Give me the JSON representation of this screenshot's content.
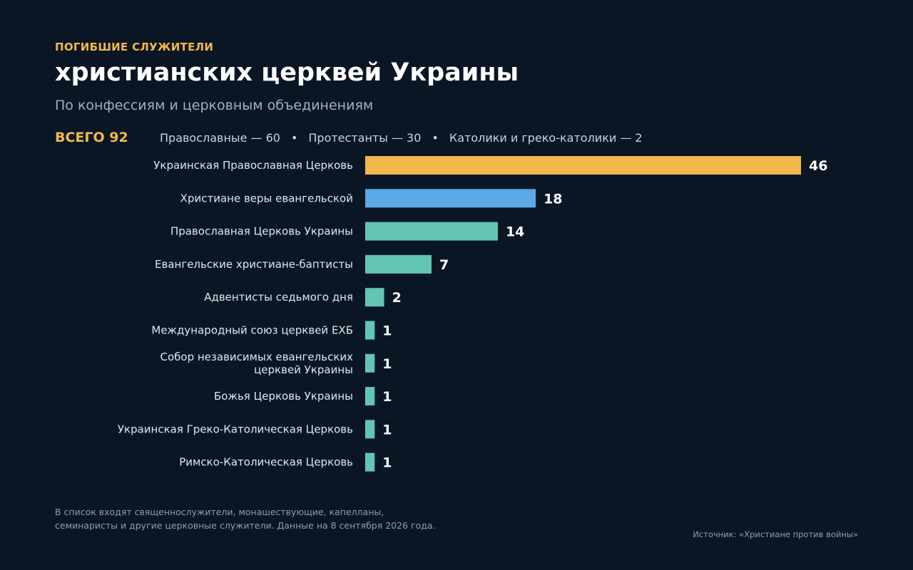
{
  "kicker": "ПОГИБШИЕ СЛУЖИТЕЛИ",
  "title": "христианских церквей Украины",
  "subtitle": "По конфессиям и церковным объединениям",
  "totals": {
    "main": "ВСЕГО 92",
    "orthodox": "Православные — 60",
    "protestant": "Протестанты — 30",
    "catholic": "Католики и греко-католики — 2",
    "separator": "•"
  },
  "colors": {
    "background": "#0b1624",
    "accent": "#f2b84b",
    "highlight_bar": "#f2b84b",
    "second_bar": "#5aa9e6",
    "other_bars": "#63c5b4"
  },
  "chart_data": {
    "type": "bar",
    "orientation": "horizontal",
    "categories": [
      "Украинская Православная Церковь",
      "Христиане веры евангельской",
      "Православная Церковь Украины",
      "Евангельские христиане-баптисты",
      "Адвентисты седьмого дня",
      "Международный союз церквей ЕХБ",
      "Собор независимых евангельских церквей Украины",
      "Божья Церковь Украины",
      "Украинская Греко-Католическая Церковь",
      "Римско-Католическая Церковь"
    ],
    "category_lines": [
      [
        "Украинская Православная Церковь"
      ],
      [
        "Христиане веры евангельской"
      ],
      [
        "Православная Церковь Украины"
      ],
      [
        "Евангельские христиане-баптисты"
      ],
      [
        "Адвентисты седьмого дня"
      ],
      [
        "Международный союз церквей ЕХБ"
      ],
      [
        "Собор независимых евангельских",
        "церквей Украины"
      ],
      [
        "Божья Церковь Украины"
      ],
      [
        "Украинская Греко-Католическая Церковь"
      ],
      [
        "Римско-Католическая Церковь"
      ]
    ],
    "values": [
      46,
      18,
      14,
      7,
      2,
      1,
      1,
      1,
      1,
      1
    ],
    "bar_colors": [
      "#f2b84b",
      "#5aa9e6",
      "#63c5b4",
      "#63c5b4",
      "#63c5b4",
      "#63c5b4",
      "#63c5b4",
      "#63c5b4",
      "#63c5b4",
      "#63c5b4"
    ],
    "xlim": [
      0,
      46
    ],
    "grid": false,
    "data_labels": true
  },
  "footnote": {
    "line1": "В список входят священнослужители, монашествующие, капелланы,",
    "line2": "семинаристы и другие церковные служители. Данные на 8 сентября 2026 года."
  },
  "source": "Источник: «Христиане против войны»"
}
